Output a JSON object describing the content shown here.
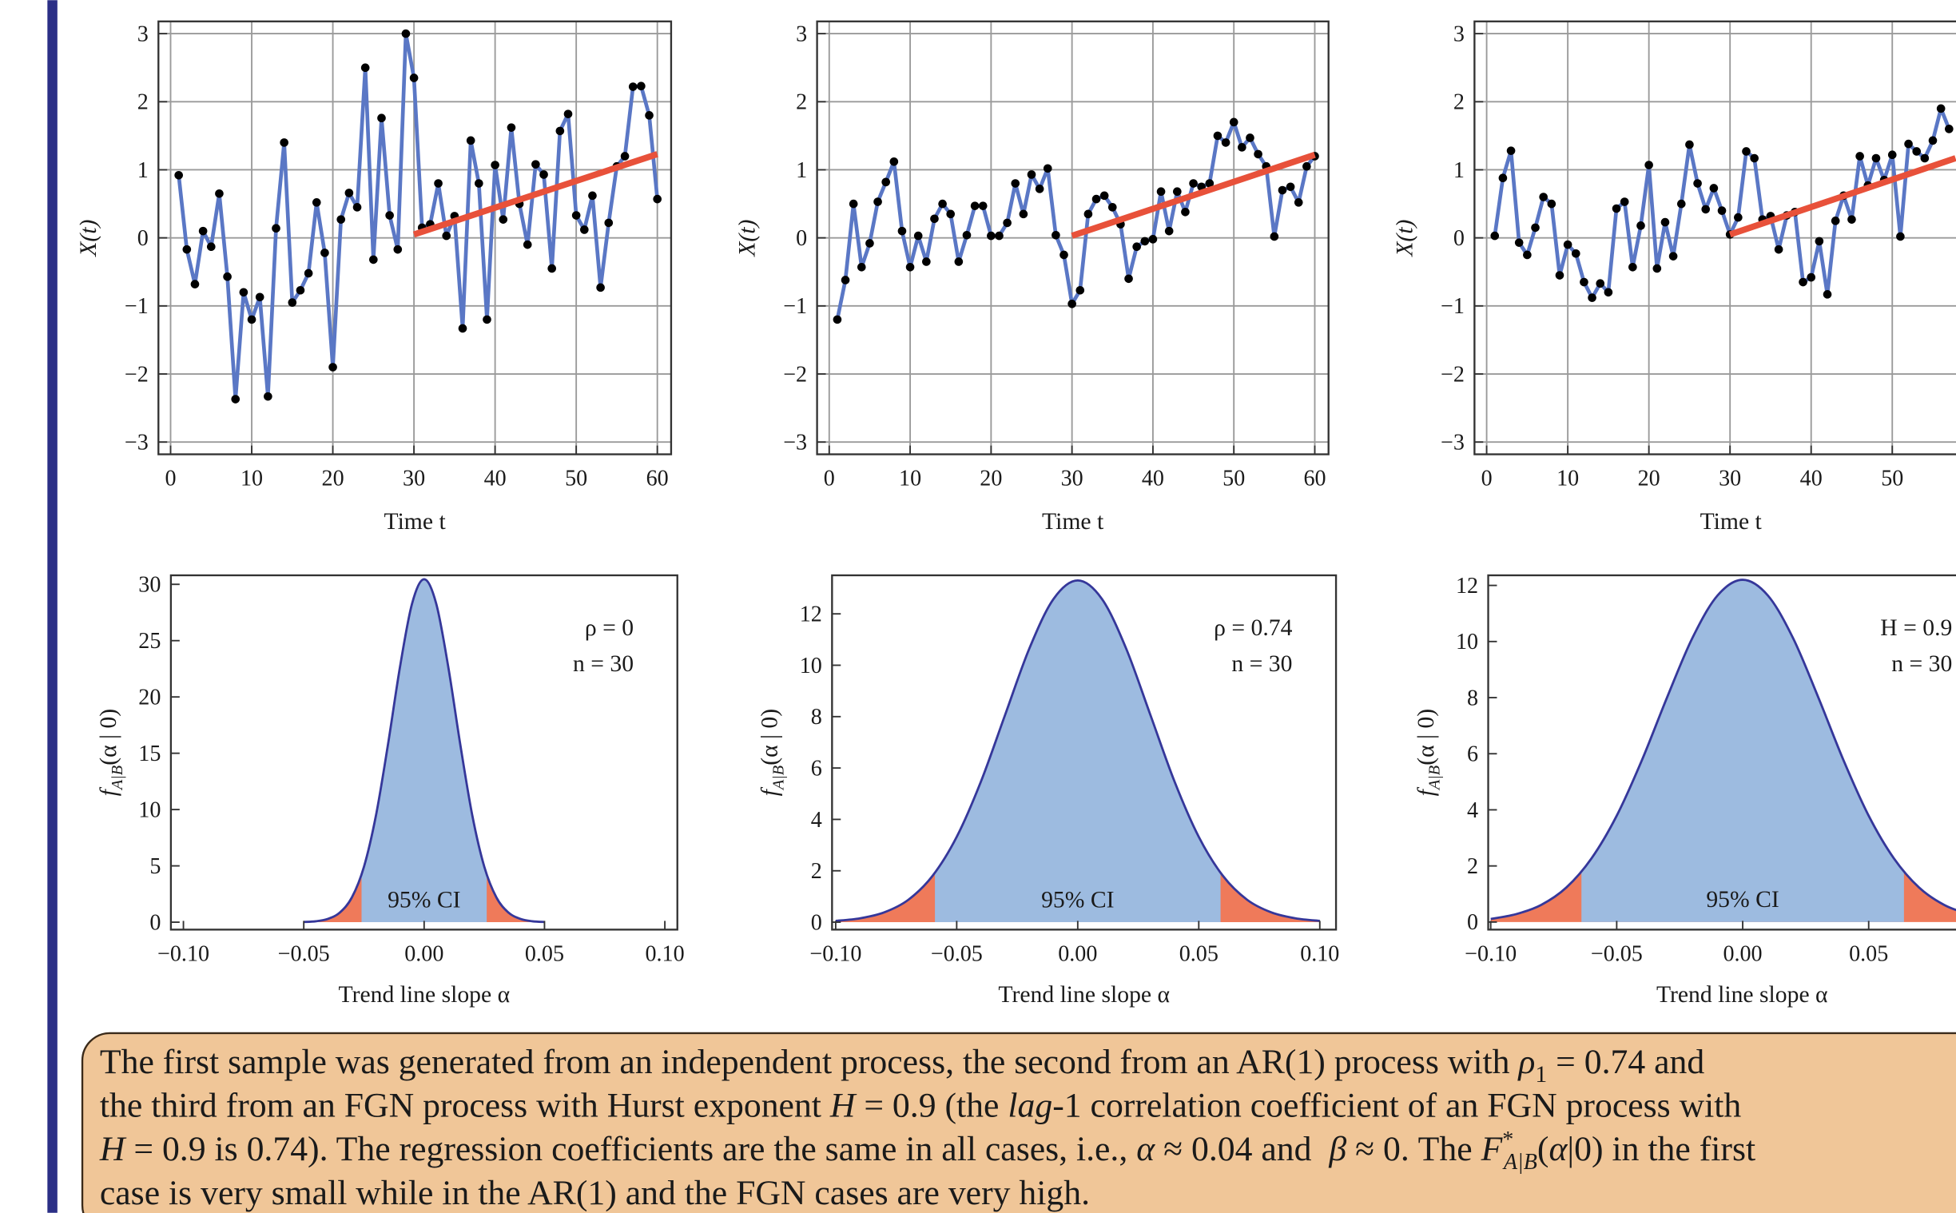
{
  "chart_data": [
    {
      "type": "line",
      "ylabel": "X(t)",
      "xlabel": "Time t",
      "grid": true,
      "color": "#5a77c5",
      "marker_color": "#000000",
      "x": [
        1,
        2,
        3,
        4,
        5,
        6,
        7,
        8,
        9,
        10,
        11,
        12,
        13,
        14,
        15,
        16,
        17,
        18,
        19,
        20,
        21,
        22,
        23,
        24,
        25,
        26,
        27,
        28,
        29,
        30,
        31,
        32,
        33,
        34,
        35,
        36,
        37,
        38,
        39,
        40,
        41,
        42,
        43,
        44,
        45,
        46,
        47,
        48,
        49,
        50,
        51,
        52,
        53,
        54,
        55,
        56,
        57,
        58,
        59,
        60
      ],
      "values": [
        0.92,
        -0.17,
        -0.68,
        0.1,
        -0.13,
        0.65,
        -0.57,
        -2.37,
        -0.8,
        -1.2,
        -0.87,
        -2.33,
        0.14,
        1.4,
        -0.95,
        -0.77,
        -0.52,
        0.52,
        -0.22,
        -1.9,
        0.27,
        0.66,
        0.45,
        2.5,
        -0.32,
        1.76,
        0.33,
        -0.17,
        3.0,
        2.35,
        0.15,
        0.2,
        0.8,
        0.03,
        0.32,
        -1.33,
        1.43,
        0.8,
        -1.2,
        1.07,
        0.27,
        1.62,
        0.5,
        -0.1,
        1.08,
        0.93,
        -0.45,
        1.57,
        1.82,
        0.33,
        0.12,
        0.62,
        -0.73,
        0.22,
        1.05,
        1.2,
        2.22,
        2.23,
        1.8,
        0.57
      ],
      "trend": {
        "x": [
          30,
          60
        ],
        "values": [
          0.05,
          1.23
        ],
        "color": "#e8513a"
      },
      "xlim": [
        -1.5,
        61.7
      ],
      "ylim": [
        -3.18,
        3.18
      ],
      "xticks": [
        0,
        10,
        20,
        30,
        40,
        50,
        60
      ],
      "yticks": [
        {
          "value": -3,
          "label": "−3"
        },
        {
          "value": -2,
          "label": "−2"
        },
        {
          "value": -1,
          "label": "−1"
        },
        0,
        1,
        2,
        3
      ]
    },
    {
      "type": "line",
      "ylabel": "X(t)",
      "xlabel": "Time t",
      "grid": true,
      "color": "#5a77c5",
      "marker_color": "#000000",
      "x": [
        1,
        2,
        3,
        4,
        5,
        6,
        7,
        8,
        9,
        10,
        11,
        12,
        13,
        14,
        15,
        16,
        17,
        18,
        19,
        20,
        21,
        22,
        23,
        24,
        25,
        26,
        27,
        28,
        29,
        30,
        31,
        32,
        33,
        34,
        35,
        36,
        37,
        38,
        39,
        40,
        41,
        42,
        43,
        44,
        45,
        46,
        47,
        48,
        49,
        50,
        51,
        52,
        53,
        54,
        55,
        56,
        57,
        58,
        59,
        60
      ],
      "values": [
        -1.2,
        -0.62,
        0.5,
        -0.43,
        -0.08,
        0.53,
        0.82,
        1.12,
        0.1,
        -0.43,
        0.03,
        -0.35,
        0.28,
        0.5,
        0.35,
        -0.35,
        0.04,
        0.47,
        0.47,
        0.03,
        0.03,
        0.22,
        0.8,
        0.35,
        0.93,
        0.72,
        1.02,
        0.04,
        -0.25,
        -0.97,
        -0.77,
        0.35,
        0.57,
        0.62,
        0.45,
        0.2,
        -0.6,
        -0.13,
        -0.05,
        -0.02,
        0.68,
        0.1,
        0.68,
        0.38,
        0.8,
        0.75,
        0.8,
        1.5,
        1.4,
        1.7,
        1.33,
        1.47,
        1.23,
        1.05,
        0.02,
        0.7,
        0.75,
        0.52,
        1.05,
        1.2
      ],
      "trend": {
        "x": [
          30,
          60
        ],
        "values": [
          0.03,
          1.22
        ],
        "color": "#e8513a"
      },
      "xlim": [
        -1.5,
        61.7
      ],
      "ylim": [
        -3.18,
        3.18
      ],
      "xticks": [
        0,
        10,
        20,
        30,
        40,
        50,
        60
      ],
      "yticks": [
        {
          "value": -3,
          "label": "−3"
        },
        {
          "value": -2,
          "label": "−2"
        },
        {
          "value": -1,
          "label": "−1"
        },
        0,
        1,
        2,
        3
      ]
    },
    {
      "type": "line",
      "ylabel": "X(t)",
      "xlabel": "Time t",
      "grid": true,
      "color": "#5a77c5",
      "marker_color": "#000000",
      "x": [
        1,
        2,
        3,
        4,
        5,
        6,
        7,
        8,
        9,
        10,
        11,
        12,
        13,
        14,
        15,
        16,
        17,
        18,
        19,
        20,
        21,
        22,
        23,
        24,
        25,
        26,
        27,
        28,
        29,
        30,
        31,
        32,
        33,
        34,
        35,
        36,
        37,
        38,
        39,
        40,
        41,
        42,
        43,
        44,
        45,
        46,
        47,
        48,
        49,
        50,
        51,
        52,
        53,
        54,
        55,
        56,
        57
      ],
      "values": [
        0.03,
        0.88,
        1.28,
        -0.07,
        -0.25,
        0.15,
        0.6,
        0.5,
        -0.55,
        -0.1,
        -0.23,
        -0.65,
        -0.88,
        -0.67,
        -0.8,
        0.43,
        0.53,
        -0.43,
        0.18,
        1.07,
        -0.45,
        0.23,
        -0.27,
        0.5,
        1.37,
        0.8,
        0.42,
        0.73,
        0.4,
        0.05,
        0.3,
        1.27,
        1.17,
        0.27,
        0.32,
        -0.17,
        0.33,
        0.38,
        -0.65,
        -0.58,
        -0.05,
        -0.83,
        0.25,
        0.62,
        0.27,
        1.2,
        0.77,
        1.17,
        0.85,
        1.22,
        0.02,
        1.38,
        1.27,
        1.17,
        1.43,
        1.9,
        1.6
      ],
      "trend": {
        "x": [
          30,
          57.8
        ],
        "values": [
          0.05,
          1.17
        ],
        "color": "#e8513a"
      },
      "xlim": [
        -1.5,
        61.7
      ],
      "ylim": [
        -3.18,
        3.18
      ],
      "xticks": [
        0,
        10,
        20,
        30,
        40,
        50
      ],
      "yticks": [
        {
          "value": -3,
          "label": "−3"
        },
        {
          "value": -2,
          "label": "−2"
        },
        {
          "value": -1,
          "label": "−1"
        },
        0,
        1,
        2,
        3
      ]
    },
    {
      "type": "area",
      "ylabel": [
        "f",
        "A|B",
        "(α | 0)"
      ],
      "xlabel": "Trend line slope α",
      "annotations": [
        "ρ = 0",
        "n = 30"
      ],
      "ci_label": "95% CI",
      "color": "#9dbbe0",
      "tail_color": "#ef7a5a",
      "line_color": "#35379a",
      "x": [
        -0.05,
        -0.045,
        -0.04,
        -0.035,
        -0.03,
        -0.025,
        -0.02,
        -0.015,
        -0.01,
        -0.005,
        0,
        0.005,
        0.01,
        0.015,
        0.02,
        0.025,
        0.03,
        0.035,
        0.04,
        0.045,
        0.05
      ],
      "values": [
        0.02,
        0.08,
        0.29,
        0.86,
        2.21,
        4.92,
        9.49,
        15.8,
        22.7,
        28.3,
        30.45,
        28.3,
        22.7,
        15.8,
        9.49,
        4.92,
        2.21,
        0.86,
        0.29,
        0.08,
        0.02
      ],
      "ci": [
        -0.026,
        0.026
      ],
      "xlim": [
        -0.1052,
        0.1052
      ],
      "ylim": [
        -0.66,
        30.8
      ],
      "xticks": [
        {
          "value": -0.1,
          "label": "−0.10"
        },
        {
          "value": -0.05,
          "label": "−0.05"
        },
        {
          "value": 0,
          "label": "0.00"
        },
        {
          "value": 0.05,
          "label": "0.05"
        },
        {
          "value": 0.1,
          "label": "0.10"
        }
      ],
      "yticks": [
        0,
        5,
        10,
        15,
        20,
        25,
        30
      ]
    },
    {
      "type": "area",
      "ylabel": [
        "f",
        "A|B",
        "(α | 0)"
      ],
      "xlabel": "Trend line slope α",
      "annotations": [
        "ρ = 0.74",
        "n = 30"
      ],
      "ci_label": "95% CI",
      "color": "#9dbbe0",
      "tail_color": "#ef7a5a",
      "line_color": "#35379a",
      "x": [
        -0.1,
        -0.09,
        -0.08,
        -0.07,
        -0.06,
        -0.05,
        -0.04,
        -0.03,
        -0.02,
        -0.01,
        0,
        0.01,
        0.02,
        0.03,
        0.04,
        0.05,
        0.06,
        0.07,
        0.08,
        0.09,
        0.1
      ],
      "values": [
        0.05,
        0.15,
        0.38,
        0.87,
        1.8,
        3.32,
        5.47,
        8.07,
        10.65,
        12.58,
        13.3,
        12.58,
        10.65,
        8.07,
        5.47,
        3.32,
        1.8,
        0.87,
        0.38,
        0.15,
        0.05
      ],
      "ci": [
        -0.059,
        0.059
      ],
      "xlim": [
        -0.1015,
        0.1067
      ],
      "ylim": [
        -0.29,
        13.5
      ],
      "xticks": [
        {
          "value": -0.1,
          "label": "−0.10"
        },
        {
          "value": -0.05,
          "label": "−0.05"
        },
        {
          "value": 0,
          "label": "0.00"
        },
        {
          "value": 0.05,
          "label": "0.05"
        },
        {
          "value": 0.1,
          "label": "0.10"
        }
      ],
      "yticks": [
        0,
        2,
        4,
        6,
        8,
        10,
        12
      ]
    },
    {
      "type": "area",
      "ylabel": [
        "f",
        "A|B",
        "(α | 0)"
      ],
      "xlabel": "Trend line slope α",
      "annotations": [
        "H = 0.9",
        "n = 30"
      ],
      "ci_label": "95% CI",
      "color": "#9dbbe0",
      "tail_color": "#ef7a5a",
      "line_color": "#35379a",
      "x": [
        -0.1,
        -0.09,
        -0.08,
        -0.07,
        -0.06,
        -0.05,
        -0.04,
        -0.03,
        -0.02,
        -0.01,
        0,
        0.01,
        0.02,
        0.03,
        0.04,
        0.05,
        0.06,
        0.07,
        0.08,
        0.09,
        0.1
      ],
      "values": [
        0.11,
        0.28,
        0.61,
        1.23,
        2.27,
        3.79,
        5.77,
        8.01,
        10.12,
        11.64,
        12.2,
        11.64,
        10.12,
        8.01,
        5.77,
        3.79,
        2.27,
        1.23,
        0.61,
        0.28,
        0.11
      ],
      "ci": [
        -0.064,
        0.064
      ],
      "xlim": [
        -0.101,
        0.1005
      ],
      "ylim": [
        -0.27,
        12.36
      ],
      "xticks": [
        {
          "value": -0.1,
          "label": "−0.10"
        },
        {
          "value": -0.05,
          "label": "−0.05"
        },
        {
          "value": 0,
          "label": "0.00"
        },
        {
          "value": 0.05,
          "label": "0.05"
        }
      ],
      "yticks": [
        0,
        2,
        4,
        6,
        8,
        10,
        12
      ]
    }
  ],
  "caption": {
    "segments": [
      "The first sample was generated from an independent process, the second from an AR(1) process with ",
      "ρ",
      "1",
      " = 0.74 and",
      "the third from an FGN process with Hurst exponent ",
      "H",
      " = 0.9 (the ",
      "lag",
      "-1 correlation coefficient of an FGN process with",
      "H",
      " = 0.9 is 0.74). The regression coefficients are the same in all cases, i.e., ",
      "α",
      " ≈ 0.04 and  ",
      "β",
      " ≈ 0. The ",
      "F",
      "*",
      "A|B",
      "(",
      "α",
      "|0) in the first",
      "case is very small while in the AR(1) and the FGN cases are very high."
    ]
  }
}
